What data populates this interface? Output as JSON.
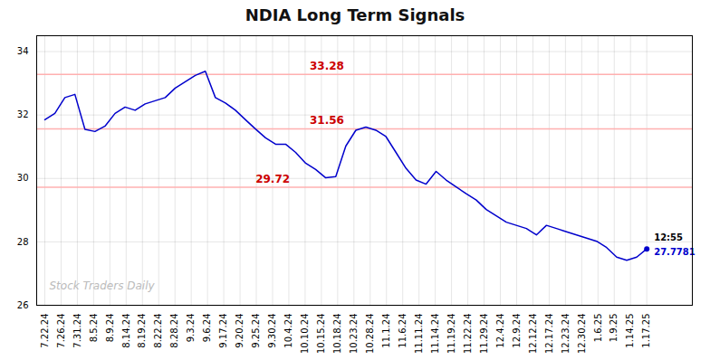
{
  "chart_data": {
    "type": "line",
    "title": "NDIA Long Term Signals",
    "color": "#0000cc",
    "x": [
      0,
      0.6166666666666667,
      1.2333333333333334,
      1.85,
      2.466666666666667,
      3.0833333333333335,
      3.7,
      4.316666666666666,
      4.933333333333334,
      5.55,
      6.166666666666667,
      6.783333333333333,
      7.4,
      8.016666666666667,
      8.633333333333333,
      9.25,
      9.866666666666667,
      10.483333333333333,
      11.1,
      11.716666666666667,
      12.333333333333334,
      12.95,
      13.566666666666666,
      14.183333333333334,
      14.8,
      15.416666666666666,
      16.033333333333335,
      16.65,
      17.266666666666666,
      17.883333333333333,
      18.5,
      19.116666666666667,
      19.733333333333334,
      20.35,
      20.96666666666667,
      21.583333333333332,
      22.2,
      22.816666666666666,
      23.433333333333334,
      24.05,
      24.666666666666668,
      25.283333333333335,
      25.9,
      26.516666666666666,
      27.133333333333333,
      27.75,
      28.366666666666667,
      28.983333333333334,
      29.6,
      30.216666666666665,
      30.833333333333332,
      31.45,
      32.06666666666667,
      32.68333333333333,
      33.3,
      33.916666666666664,
      34.53333333333333,
      35.15,
      35.766666666666666,
      36.38333333333333,
      37
    ],
    "values": [
      31.85,
      32.05,
      32.55,
      32.65,
      31.55,
      31.48,
      31.65,
      32.05,
      32.25,
      32.15,
      32.35,
      32.45,
      32.55,
      32.85,
      33.05,
      33.25,
      33.38,
      32.55,
      32.38,
      32.15,
      31.85,
      31.56,
      31.28,
      31.08,
      31.08,
      30.82,
      30.48,
      30.28,
      30.02,
      30.06,
      31.02,
      31.52,
      31.62,
      31.52,
      31.32,
      30.82,
      30.32,
      29.95,
      29.82,
      30.22,
      29.95,
      29.73,
      29.52,
      29.32,
      29.02,
      28.82,
      28.62,
      28.52,
      28.42,
      28.22,
      28.52,
      28.42,
      28.32,
      28.22,
      28.12,
      28.02,
      27.82,
      27.52,
      27.42,
      27.52,
      27.7781
    ],
    "xlim": [
      -0.5,
      39.8
    ],
    "xticks": [
      {
        "value": 0,
        "label": "7.22.24"
      },
      {
        "value": 1,
        "label": "7.26.24"
      },
      {
        "value": 2,
        "label": "7.31.24"
      },
      {
        "value": 3,
        "label": "8.5.24"
      },
      {
        "value": 4,
        "label": "8.9.24"
      },
      {
        "value": 5,
        "label": "8.14.24"
      },
      {
        "value": 6,
        "label": "8.19.24"
      },
      {
        "value": 7,
        "label": "8.22.24"
      },
      {
        "value": 8,
        "label": "8.28.24"
      },
      {
        "value": 9,
        "label": "9.3.24"
      },
      {
        "value": 10,
        "label": "9.6.24"
      },
      {
        "value": 11,
        "label": "9.17.24"
      },
      {
        "value": 12,
        "label": "9.20.24"
      },
      {
        "value": 13,
        "label": "9.25.24"
      },
      {
        "value": 14,
        "label": "9.30.24"
      },
      {
        "value": 15,
        "label": "10.4.24"
      },
      {
        "value": 16,
        "label": "10.10.24"
      },
      {
        "value": 17,
        "label": "10.15.24"
      },
      {
        "value": 18,
        "label": "10.18.24"
      },
      {
        "value": 19,
        "label": "10.23.24"
      },
      {
        "value": 20,
        "label": "10.28.24"
      },
      {
        "value": 21,
        "label": "11.1.24"
      },
      {
        "value": 22,
        "label": "11.6.24"
      },
      {
        "value": 23,
        "label": "11.11.24"
      },
      {
        "value": 24,
        "label": "11.14.24"
      },
      {
        "value": 25,
        "label": "11.19.24"
      },
      {
        "value": 26,
        "label": "11.22.24"
      },
      {
        "value": 27,
        "label": "11.29.24"
      },
      {
        "value": 28,
        "label": "12.4.24"
      },
      {
        "value": 29,
        "label": "12.9.24"
      },
      {
        "value": 30,
        "label": "12.12.24"
      },
      {
        "value": 31,
        "label": "12.17.24"
      },
      {
        "value": 32,
        "label": "12.23.24"
      },
      {
        "value": 33,
        "label": "12.30.24"
      },
      {
        "value": 34,
        "label": "1.6.25"
      },
      {
        "value": 35,
        "label": "1.9.25"
      },
      {
        "value": 36,
        "label": "1.14.25"
      },
      {
        "value": 37,
        "label": "1.17.25"
      }
    ],
    "ylim": [
      26,
      34.5
    ],
    "yticks": [
      26,
      28,
      30,
      32,
      34
    ],
    "grid": true,
    "hlines": [
      {
        "y": 33.28,
        "color": "#ffb0b0",
        "label": "33.28",
        "label_color": "#cc0000"
      },
      {
        "y": 31.56,
        "color": "#ffb0b0",
        "label": "31.56",
        "label_color": "#cc0000"
      },
      {
        "y": 29.72,
        "color": "#ffb0b0",
        "label": "29.72",
        "label_color": "#cc0000"
      }
    ],
    "annotations": [
      {
        "text": "12:55",
        "color": "#000000"
      },
      {
        "text": "27.7781",
        "color": "#0000cc"
      }
    ],
    "watermark": {
      "text": "Stock Traders Daily",
      "color": "#b0b0b0"
    }
  }
}
